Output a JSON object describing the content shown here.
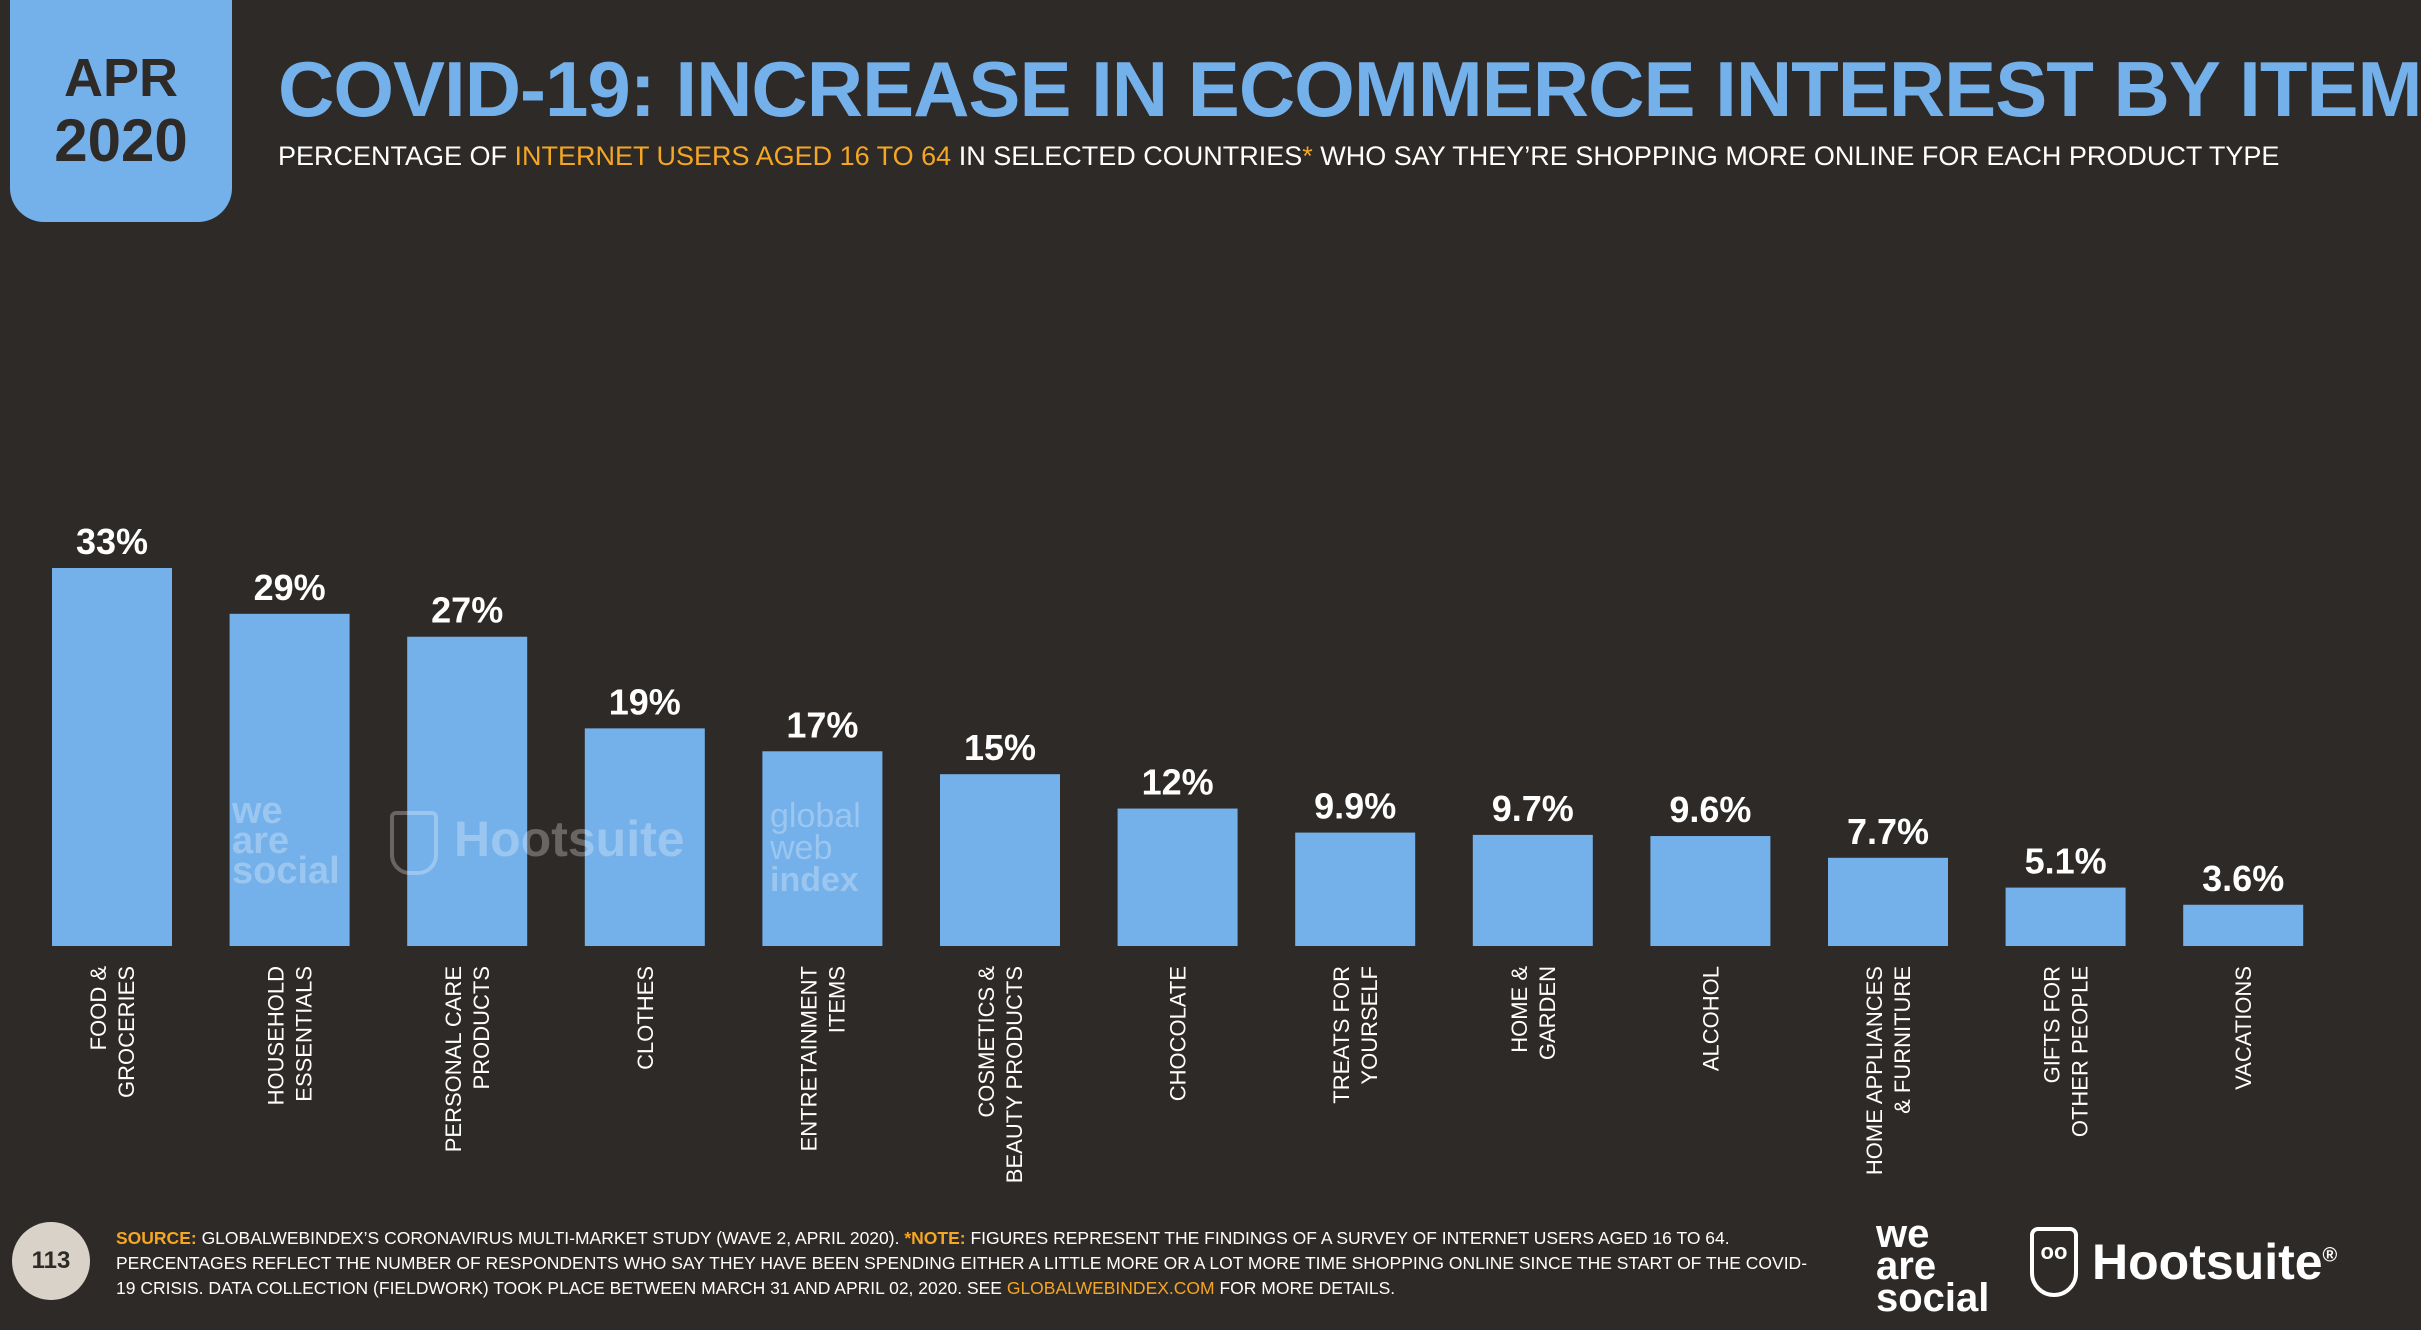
{
  "badge": {
    "month": "APR",
    "year": "2020"
  },
  "header": {
    "title": "COVID-19: INCREASE IN ECOMMERCE INTEREST BY ITEM",
    "subtitle_pre": "PERCENTAGE OF ",
    "subtitle_highlight": "INTERNET USERS AGED 16 TO 64",
    "subtitle_mid": " IN SELECTED COUNTRIES",
    "subtitle_star": "*",
    "subtitle_post": " WHO SAY THEY’RE SHOPPING MORE ONLINE FOR EACH PRODUCT TYPE"
  },
  "colors": {
    "bar": "#74b0ea",
    "background": "#2e2a27",
    "highlight": "#f5a623",
    "text": "#ffffff"
  },
  "chart_data": {
    "type": "bar",
    "categories": [
      [
        "FOOD &",
        "GROCERIES"
      ],
      [
        "HOUSEHOLD",
        "ESSENTIALS"
      ],
      [
        "PERSONAL CARE",
        "PRODUCTS"
      ],
      [
        "CLOTHES"
      ],
      [
        "ENTRETAINMENT",
        "ITEMS"
      ],
      [
        "COSMETICS &",
        "BEAUTY PRODUCTS"
      ],
      [
        "CHOCOLATE"
      ],
      [
        "TREATS FOR",
        "YOURSELF"
      ],
      [
        "HOME &",
        "GARDEN"
      ],
      [
        "ALCOHOL"
      ],
      [
        "HOME APPLIANCES",
        "& FURNITURE"
      ],
      [
        "GIFTS FOR",
        "OTHER PEOPLE"
      ],
      [
        "VACATIONS"
      ]
    ],
    "values": [
      33,
      29,
      27,
      19,
      17,
      15,
      12,
      9.9,
      9.7,
      9.6,
      7.7,
      5.1,
      3.6
    ],
    "value_labels": [
      "33%",
      "29%",
      "27%",
      "19%",
      "17%",
      "15%",
      "12%",
      "9.9%",
      "9.7%",
      "9.6%",
      "7.7%",
      "5.1%",
      "3.6%"
    ],
    "ylim": [
      0,
      33
    ],
    "grid": false,
    "legend": "none"
  },
  "watermarks": {
    "was": [
      "we",
      "are",
      "social"
    ],
    "hootsuite": "Hootsuite",
    "gwi": [
      "global",
      "web",
      "index"
    ]
  },
  "footer": {
    "page_number": "113",
    "source_label": "SOURCE:",
    "source_text": " GLOBALWEBINDEX’S CORONAVIRUS MULTI-MARKET STUDY (WAVE 2, APRIL 2020). ",
    "note_label": "*NOTE:",
    "note_text": " FIGURES REPRESENT THE FINDINGS OF A SURVEY OF INTERNET USERS AGED 16 TO 64. PERCENTAGES REFLECT THE NUMBER OF RESPONDENTS WHO SAY THEY HAVE BEEN SPENDING EITHER A LITTLE MORE OR A LOT MORE TIME SHOPPING ONLINE SINCE THE START OF THE COVID-19 CRISIS. DATA COLLECTION (FIELDWORK) TOOK PLACE BETWEEN MARCH 31 AND APRIL 02, 2020. SEE ",
    "link_text": "GLOBALWEBINDEX.COM",
    "tail_text": " FOR MORE DETAILS.",
    "logo_was": [
      "we",
      "are",
      "social"
    ],
    "logo_hootsuite": "Hootsuite",
    "logo_hootsuite_mark": "®"
  }
}
